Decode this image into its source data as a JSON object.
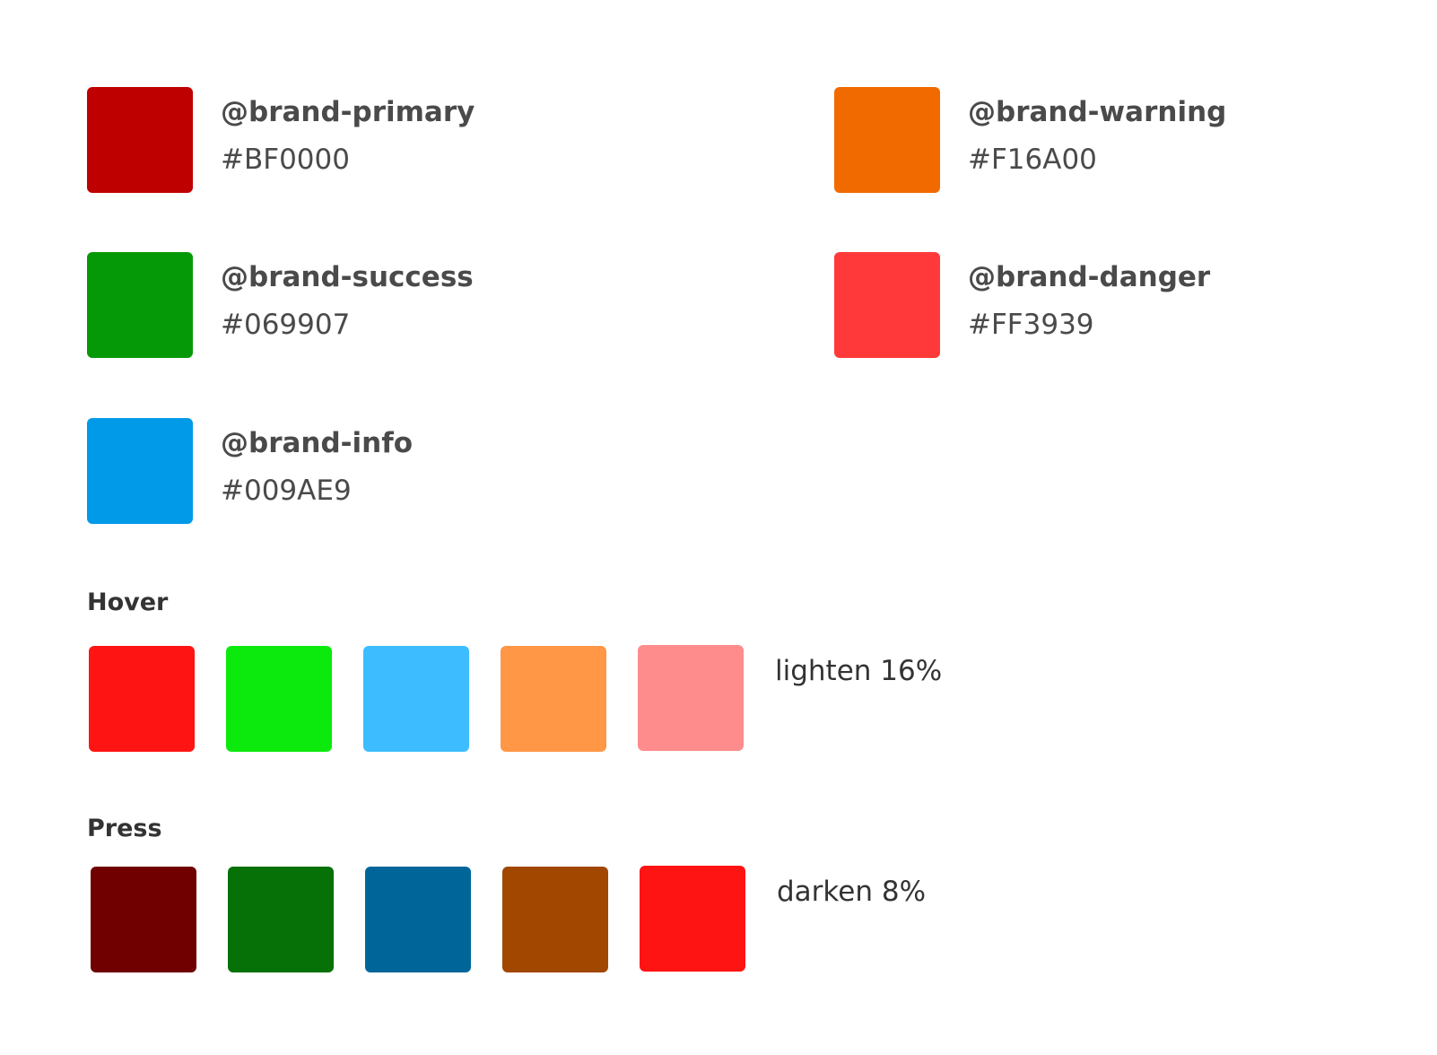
{
  "brand_colors": [
    {
      "name": "@brand-primary",
      "hex": "#BF0000",
      "color": "#BF0000"
    },
    {
      "name": "@brand-warning",
      "hex": "#F16A00",
      "color": "#F16A00"
    },
    {
      "name": "@brand-success",
      "hex": "#069907",
      "color": "#069907"
    },
    {
      "name": "@brand-danger",
      "hex": "#FF3939",
      "color": "#FF3939"
    },
    {
      "name": "@brand-info",
      "hex": "#009AE9",
      "color": "#009AE9"
    }
  ],
  "hover": {
    "title": "Hover",
    "note": "lighten 16%",
    "colors": [
      "#FF1414",
      "#0BEA0C",
      "#3DBDFF",
      "#FF9747",
      "#FF8C8C"
    ]
  },
  "press": {
    "title": "Press",
    "note": "darken 8%",
    "colors": [
      "#700000",
      "#057107",
      "#00669A",
      "#A14700",
      "#FF1414"
    ]
  }
}
